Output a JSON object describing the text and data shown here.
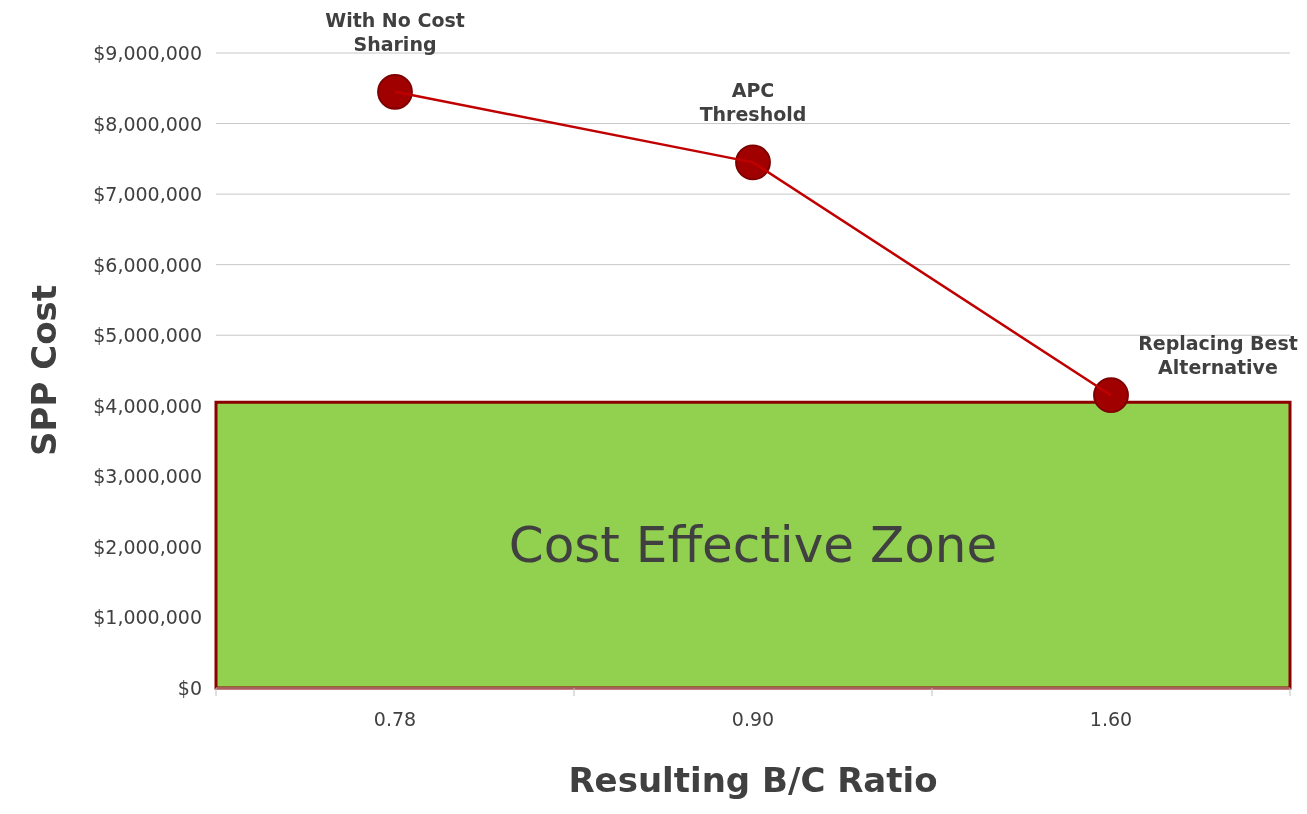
{
  "chart_data": {
    "type": "line",
    "xlabel": "Resulting B/C Ratio",
    "ylabel": "SPP Cost",
    "categories": [
      "0.78",
      "0.90",
      "1.60"
    ],
    "series": [
      {
        "color": "#c00000",
        "values": [
          8450000,
          7450000,
          4150000
        ]
      }
    ],
    "ylim": [
      0,
      9000000
    ],
    "yticks": [
      {
        "value": 0,
        "label": "$0"
      },
      {
        "value": 1000000,
        "label": "$1,000,000"
      },
      {
        "value": 2000000,
        "label": "$2,000,000"
      },
      {
        "value": 3000000,
        "label": "$3,000,000"
      },
      {
        "value": 4000000,
        "label": "$4,000,000"
      },
      {
        "value": 5000000,
        "label": "$5,000,000"
      },
      {
        "value": 6000000,
        "label": "$6,000,000"
      },
      {
        "value": 7000000,
        "label": "$7,000,000"
      },
      {
        "value": 8000000,
        "label": "$8,000,000"
      },
      {
        "value": 9000000,
        "label": "$9,000,000"
      }
    ],
    "grid": "y",
    "marker": "circle",
    "line_style": "solid",
    "bands": [
      {
        "axis": "y",
        "from": 0,
        "to": 4050000,
        "label": "Cost Effective Zone",
        "color": "#92d050"
      }
    ],
    "annotations": [
      {
        "text": "With No Cost\nSharing",
        "x": "0.78",
        "y": 8450000
      },
      {
        "text": "APC\nThreshold",
        "x": "0.90",
        "y": 7450000
      },
      {
        "text": "Replacing Best\nAlternative",
        "x": "1.60",
        "y": 4150000
      }
    ]
  }
}
